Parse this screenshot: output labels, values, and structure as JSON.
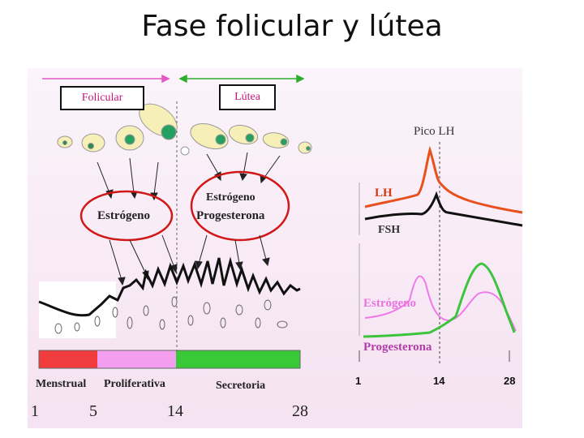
{
  "title": "Fase folicular y lútea",
  "phases": {
    "follicular": "Folicular",
    "luteal": "Lútea"
  },
  "ovary": {
    "estrogen_left": "Estrógeno",
    "estrogen_right": "Estrógeno",
    "progesterone_right": "Progesterona"
  },
  "hormones": {
    "lh_peak": "Pico LH",
    "lh": "LH",
    "fsh": "FSH",
    "estrogen": "Estrógeno",
    "progesterone": "Progesterona",
    "colors": {
      "lh": "#e8501e",
      "fsh": "#111111",
      "estrogen": "#f07ae8",
      "progesterone": "#3cc43c"
    },
    "days": [
      "1",
      "14",
      "28"
    ]
  },
  "endometrium": {
    "phases": [
      "Menstrual",
      "Proliferativa",
      "Secretoria"
    ],
    "colors": [
      "#f03c3c",
      "#f49ef0",
      "#38c838"
    ],
    "days": [
      "1",
      "5",
      "14",
      "28"
    ]
  }
}
